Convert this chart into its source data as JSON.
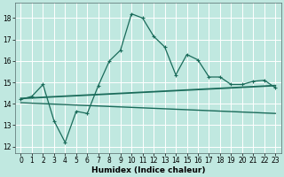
{
  "xlabel": "Humidex (Indice chaleur)",
  "bg_color": "#c0e8e0",
  "grid_color": "#ffffff",
  "line_color": "#1a6b5a",
  "xlim": [
    -0.5,
    23.5
  ],
  "ylim": [
    11.7,
    18.7
  ],
  "xticks": [
    0,
    1,
    2,
    3,
    4,
    5,
    6,
    7,
    8,
    9,
    10,
    11,
    12,
    13,
    14,
    15,
    16,
    17,
    18,
    19,
    20,
    21,
    22,
    23
  ],
  "yticks": [
    12,
    13,
    14,
    15,
    16,
    17,
    18
  ],
  "main_line_x": [
    0,
    1,
    2,
    3,
    4,
    5,
    6,
    7,
    8,
    9,
    10,
    11,
    12,
    13,
    14,
    15,
    16,
    17,
    18,
    19,
    20,
    21,
    22,
    23
  ],
  "main_line_y": [
    14.2,
    14.35,
    14.9,
    13.2,
    12.2,
    13.65,
    13.55,
    14.85,
    16.0,
    16.5,
    18.2,
    18.0,
    17.15,
    16.65,
    15.35,
    16.3,
    16.05,
    15.25,
    15.25,
    14.9,
    14.9,
    15.05,
    15.1,
    14.75
  ],
  "upper_line_x": [
    0,
    23
  ],
  "upper_line_y": [
    14.25,
    14.85
  ],
  "lower_line_x": [
    0,
    23
  ],
  "lower_line_y": [
    14.05,
    13.55
  ],
  "font_size_label": 6.5,
  "font_size_tick": 5.5
}
